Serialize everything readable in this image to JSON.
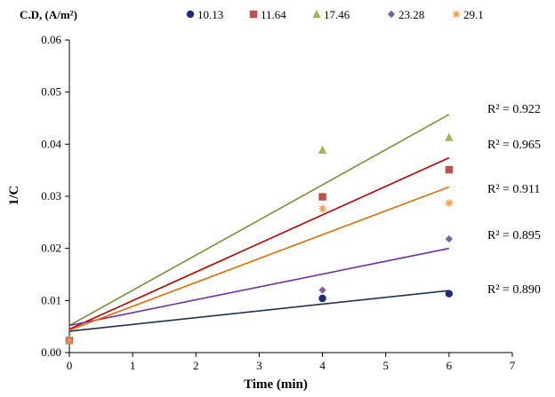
{
  "chart_data": {
    "type": "scatter",
    "xlabel": "Time (min)",
    "ylabel": "1/C",
    "xlim": [
      0,
      7
    ],
    "ylim": [
      0,
      0.06
    ],
    "x_ticks": [
      0,
      1,
      2,
      3,
      4,
      5,
      6,
      7
    ],
    "y_ticks": [
      0.0,
      0.01,
      0.02,
      0.03,
      0.04,
      0.05,
      0.06
    ],
    "y_tick_labels": [
      "0.00",
      "0.01",
      "0.02",
      "0.03",
      "0.04",
      "0.05",
      "0.06"
    ],
    "grid": false,
    "legend": {
      "title": "C.D, (A/m²)",
      "placement": "top"
    },
    "series": [
      {
        "name": "10.13",
        "marker": "circle",
        "color": "#1f2a7a",
        "line_color": "#1f3350",
        "x": [
          0,
          4,
          6
        ],
        "y": [
          0.0023,
          0.0104,
          0.0113
        ],
        "trend": [
          [
            0,
            0.0041
          ],
          [
            6,
            0.0119
          ]
        ],
        "r2_label": "R² = 0.890"
      },
      {
        "name": "11.64",
        "marker": "square",
        "color": "#c0504d",
        "line_color": "#c00000",
        "x": [
          0,
          4,
          6
        ],
        "y": [
          0.0023,
          0.0299,
          0.0351
        ],
        "trend": [
          [
            0,
            0.0045
          ],
          [
            6,
            0.0374
          ]
        ],
        "r2_label": "R² = 0.965"
      },
      {
        "name": "17.46",
        "marker": "triangle",
        "color": "#9bbb59",
        "line_color": "#77933c",
        "x": [
          0,
          4,
          6
        ],
        "y": [
          0.0023,
          0.0389,
          0.0413
        ],
        "trend": [
          [
            0,
            0.0052
          ],
          [
            6,
            0.0457
          ]
        ],
        "r2_label": "R² = 0.922"
      },
      {
        "name": "23.28",
        "marker": "diamond",
        "color": "#8064a2",
        "line_color": "#7030a0",
        "x": [
          0,
          4,
          6
        ],
        "y": [
          0.0023,
          0.012,
          0.0218
        ],
        "trend": [
          [
            0,
            0.0052
          ],
          [
            6,
            0.02
          ]
        ],
        "r2_label": "R² = 0.895"
      },
      {
        "name": "29.1",
        "marker": "asterisk",
        "color": "#f79646",
        "line_color": "#e46c0a",
        "x": [
          0,
          4,
          6
        ],
        "y": [
          0.0023,
          0.0276,
          0.0287
        ],
        "trend": [
          [
            0,
            0.0043
          ],
          [
            6,
            0.0318
          ]
        ],
        "r2_label": "R² = 0.911"
      }
    ]
  }
}
